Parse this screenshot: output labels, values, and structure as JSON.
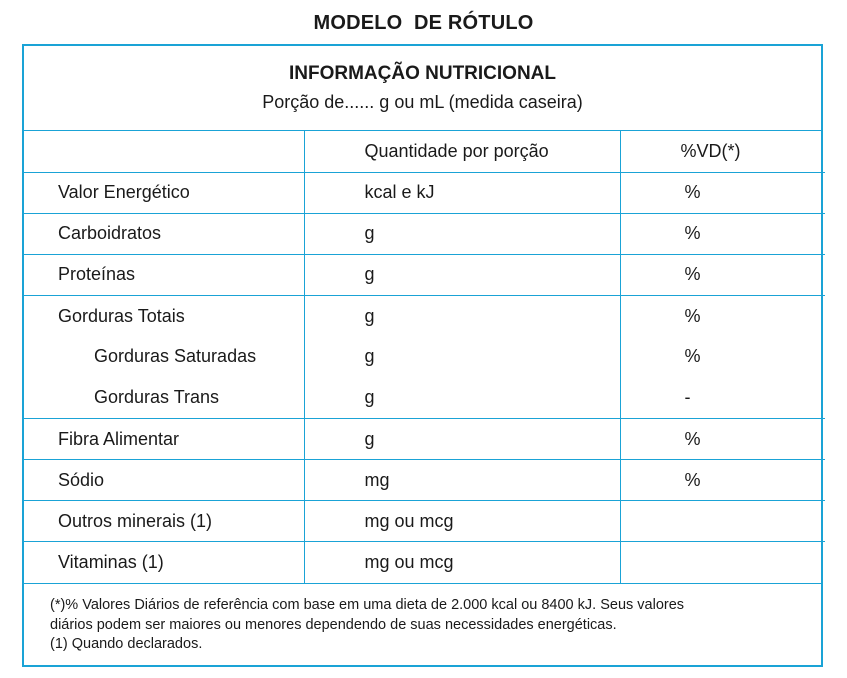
{
  "page_title": "MODELO  DE RÓTULO",
  "header": {
    "title": "INFORMAÇÃO NUTRICIONAL",
    "subtitle": "Porção de...... g ou mL (medida caseira)"
  },
  "columns": {
    "nutrient": "",
    "quantity": "Quantidade por porção",
    "daily_value": "%VD(*)"
  },
  "rows": [
    {
      "name": "Valor Energético",
      "quantity": "kcal e kJ",
      "dv": "%"
    },
    {
      "name": "Carboidratos",
      "quantity": "g",
      "dv": "%"
    },
    {
      "name": "Proteínas",
      "quantity": "g",
      "dv": "%"
    },
    {
      "name": "Gorduras Totais",
      "quantity": "g",
      "dv": "%"
    },
    {
      "name": "Gorduras Saturadas",
      "quantity": "g",
      "dv": "%"
    },
    {
      "name": "Gorduras Trans",
      "quantity": "g",
      "dv": "-"
    },
    {
      "name": "Fibra Alimentar",
      "quantity": "g",
      "dv": "%"
    },
    {
      "name": "Sódio",
      "quantity": "mg",
      "dv": "%"
    },
    {
      "name": "Outros minerais (1)",
      "quantity": "mg ou mcg",
      "dv": ""
    },
    {
      "name": "Vitaminas (1)",
      "quantity": "mg ou mcg",
      "dv": ""
    }
  ],
  "footnotes": [
    "(*)% Valores Diários de referência com base em uma dieta de 2.000 kcal ou 8400 kJ. Seus valores",
    "diários podem ser maiores ou menores dependendo de suas necessidades energéticas.",
    "(1) Quando declarados."
  ],
  "colors": {
    "border": "#1aa3d6",
    "text": "#1a1a1a"
  }
}
